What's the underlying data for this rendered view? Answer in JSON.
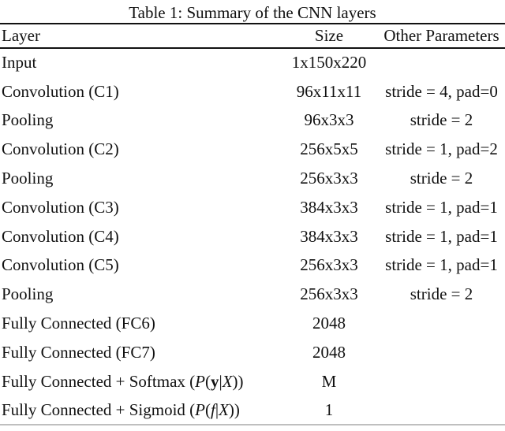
{
  "title": "Table 1: Summary of the CNN layers",
  "colors": {
    "background": "#ffffff",
    "text": "#111111",
    "rule_dark": "#111111",
    "rule_light": "#bfbfbf"
  },
  "table": {
    "headers": {
      "layer": "Layer",
      "size": "Size",
      "params": "Other Parameters"
    },
    "rows": [
      {
        "layer": "Input",
        "size": "1x150x220",
        "params": ""
      },
      {
        "layer": "Convolution (C1)",
        "size": "96x11x11",
        "params": "stride = 4, pad=0"
      },
      {
        "layer": "Pooling",
        "size": "96x3x3",
        "params": "stride = 2"
      },
      {
        "layer": "Convolution (C2)",
        "size": "256x5x5",
        "params": "stride = 1, pad=2"
      },
      {
        "layer": "Pooling",
        "size": "256x3x3",
        "params": "stride = 2"
      },
      {
        "layer": "Convolution (C3)",
        "size": "384x3x3",
        "params": "stride = 1, pad=1"
      },
      {
        "layer": "Convolution (C4)",
        "size": "384x3x3",
        "params": "stride = 1, pad=1"
      },
      {
        "layer": "Convolution (C5)",
        "size": "256x3x3",
        "params": "stride = 1, pad=1"
      },
      {
        "layer": "Pooling",
        "size": "256x3x3",
        "params": "stride = 2"
      },
      {
        "layer": "Fully Connected (FC6)",
        "size": "2048",
        "params": ""
      },
      {
        "layer": "Fully Connected (FC7)",
        "size": "2048",
        "params": ""
      },
      {
        "layer": "Fully Connected + Softmax (P(y|X))",
        "layer_segments": [
          {
            "text": "Fully Connected + Softmax (",
            "style": "normal"
          },
          {
            "text": "P",
            "style": "italic"
          },
          {
            "text": "(",
            "style": "normal"
          },
          {
            "text": "y",
            "style": "bold"
          },
          {
            "text": "|",
            "style": "normal"
          },
          {
            "text": "X",
            "style": "italic"
          },
          {
            "text": "))",
            "style": "normal"
          }
        ],
        "size": "M",
        "params": ""
      },
      {
        "layer": "Fully Connected + Sigmoid (P(f|X))",
        "layer_segments": [
          {
            "text": "Fully Connected + Sigmoid (",
            "style": "normal"
          },
          {
            "text": "P",
            "style": "italic"
          },
          {
            "text": "(",
            "style": "normal"
          },
          {
            "text": "f",
            "style": "italic"
          },
          {
            "text": "|",
            "style": "normal"
          },
          {
            "text": "X",
            "style": "italic"
          },
          {
            "text": "))",
            "style": "normal"
          }
        ],
        "size": "1",
        "params": ""
      }
    ]
  }
}
